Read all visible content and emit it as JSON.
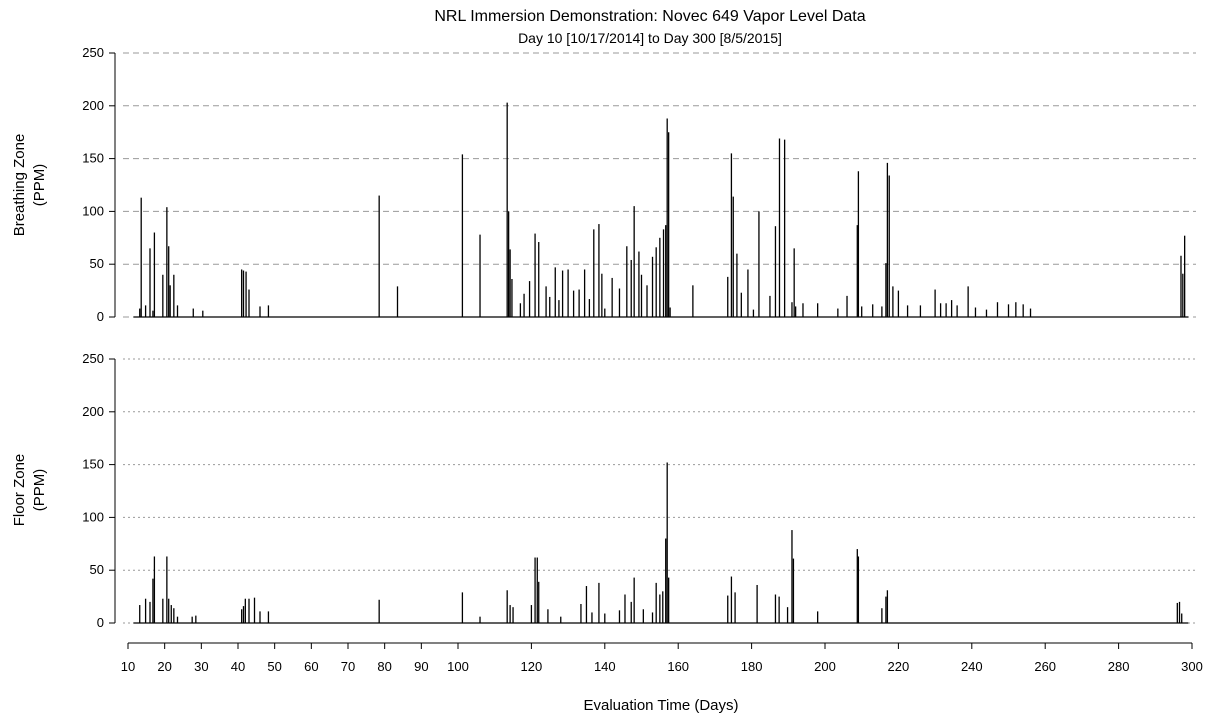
{
  "chart_data": [
    {
      "type": "bar",
      "title": "NRL Immersion Demonstration: Novec 649 Vapor Level Data",
      "subtitle": "Day 10 [10/17/2014] to Day 300 [8/5/2015]",
      "ylabel": [
        "Breathing Zone",
        "(PPM)"
      ],
      "xlabel": "",
      "ylim": [
        0,
        250
      ],
      "yticks": [
        0,
        50,
        100,
        150,
        200,
        250
      ],
      "grid": "dashed",
      "x": [
        13.2,
        13.6,
        14.8,
        16.0,
        16.8,
        17.2,
        19.5,
        20.6,
        21.1,
        21.5,
        22.5,
        23.5,
        27.8,
        30.4,
        41.0,
        41.5,
        42.2,
        43.0,
        46.0,
        48.3,
        78.5,
        83.5,
        101.2,
        106.0,
        113.4,
        113.8,
        114.2,
        114.7,
        117.0,
        118.0,
        119.5,
        121.0,
        122.0,
        124.0,
        125.0,
        126.5,
        127.5,
        128.5,
        130.0,
        131.5,
        133.0,
        134.5,
        135.8,
        137.0,
        138.4,
        139.2,
        140.0,
        142.0,
        144.0,
        146.0,
        147.2,
        148.0,
        149.3,
        150.0,
        151.5,
        153.0,
        154.0,
        155.0,
        156.0,
        156.6,
        157.0,
        157.4,
        157.8,
        164.0,
        173.5,
        174.5,
        175.0,
        176.0,
        177.2,
        179.0,
        180.5,
        182.0,
        185.0,
        186.5,
        187.6,
        189.0,
        191.0,
        191.6,
        192.0,
        194.0,
        198.0,
        203.5,
        206.0,
        208.8,
        209.1,
        210.0,
        213.0,
        215.5,
        216.6,
        217.0,
        217.5,
        218.5,
        220.0,
        222.5,
        226.0,
        230.0,
        231.5,
        233.0,
        234.5,
        236.0,
        239.0,
        241.0,
        244.0,
        247.0,
        250.0,
        252.0,
        254.0,
        256.0,
        297.0,
        297.5,
        298.0
      ],
      "values": [
        8,
        113,
        11,
        65,
        6,
        80,
        40,
        104,
        67,
        30,
        40,
        11,
        8,
        6,
        45,
        44,
        43,
        26,
        10,
        11,
        115,
        29,
        154,
        78,
        203,
        100,
        64,
        36,
        13,
        22,
        34,
        79,
        71,
        29,
        19,
        47,
        16,
        44,
        45,
        25,
        26,
        45,
        17,
        83,
        88,
        41,
        8,
        37,
        27,
        67,
        54,
        105,
        62,
        40,
        30,
        57,
        66,
        75,
        83,
        87,
        188,
        175,
        9,
        30,
        38,
        155,
        114,
        60,
        23,
        45,
        7,
        100,
        20,
        86,
        169,
        168,
        14,
        65,
        10,
        13,
        13,
        8,
        20,
        87,
        138,
        10,
        12,
        10,
        51,
        146,
        134,
        29,
        25,
        11,
        11,
        26,
        13,
        13,
        16,
        11,
        29,
        9,
        7,
        14,
        12,
        14,
        12,
        8,
        58,
        41,
        77
      ]
    },
    {
      "type": "bar",
      "title": "",
      "xlabel": "Evaluation Time (Days)",
      "ylabel": [
        "Floor Zone",
        "(PPM)"
      ],
      "ylim": [
        0,
        250
      ],
      "yticks": [
        0,
        50,
        100,
        150,
        200,
        250
      ],
      "grid": "dotted",
      "x": [
        13.2,
        14.8,
        16.0,
        16.8,
        17.2,
        19.5,
        20.6,
        21.1,
        21.8,
        22.5,
        23.5,
        27.5,
        28.5,
        41.0,
        41.5,
        42.0,
        43.0,
        44.5,
        46.0,
        48.3,
        78.5,
        101.2,
        106.0,
        113.4,
        114.2,
        115.0,
        120.0,
        121.0,
        121.6,
        122.0,
        124.5,
        128.0,
        133.5,
        135.0,
        136.5,
        138.4,
        140.0,
        144.0,
        145.5,
        147.2,
        148.0,
        150.5,
        153.0,
        154.0,
        155.0,
        155.8,
        156.6,
        157.0,
        157.4,
        173.5,
        174.5,
        175.5,
        181.5,
        186.5,
        187.5,
        189.8,
        191.0,
        191.4,
        198.0,
        208.8,
        209.1,
        215.5,
        216.6,
        217.0,
        296.0,
        296.6,
        297.2
      ],
      "values": [
        17,
        23,
        20,
        42,
        63,
        23,
        63,
        23,
        17,
        14,
        6,
        6,
        7,
        13,
        16,
        23,
        23,
        24,
        11,
        11,
        22,
        29,
        6,
        31,
        17,
        15,
        17,
        62,
        62,
        39,
        13,
        6,
        18,
        35,
        10,
        38,
        9,
        12,
        27,
        20,
        43,
        13,
        10,
        38,
        27,
        30,
        80,
        152,
        43,
        26,
        44,
        29,
        36,
        27,
        25,
        15,
        88,
        61,
        11,
        70,
        63,
        14,
        25,
        31,
        19,
        20,
        9
      ]
    }
  ],
  "x_axis": {
    "label": "Evaluation Time (Days)",
    "ticks": [
      10,
      20,
      30,
      40,
      50,
      60,
      70,
      80,
      90,
      100,
      120,
      140,
      160,
      180,
      200,
      220,
      240,
      260,
      280,
      300
    ],
    "tick_labels": [
      "10",
      "20",
      "30",
      "40",
      "50",
      "60",
      "70",
      "80",
      "90",
      "100",
      "120",
      "140",
      "160",
      "180",
      "200",
      "220",
      "240",
      "260",
      "280",
      "300"
    ]
  }
}
